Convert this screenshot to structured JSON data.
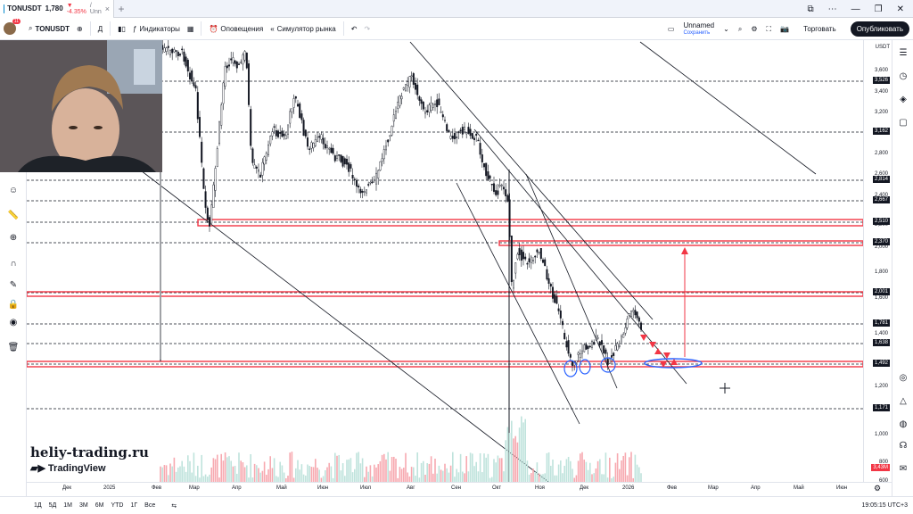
{
  "tab": {
    "symbol": "TONUSDT",
    "price": "1,780",
    "change": "▼ -4.35%",
    "suffix": "/ Unn",
    "close": "×",
    "new": "+"
  },
  "toolbar": {
    "symbol": "TONUSDT",
    "interval": "Д",
    "indicators": "Индикаторы",
    "alerts": "Оповещения",
    "replay": "Симулятор рынка",
    "layout_name": "Unnamed",
    "layout_save": "Сохранить",
    "trade": "Торговать",
    "publish": "Опубликовать",
    "avatar_badge": "11"
  },
  "price_axis": {
    "currency": "USDT",
    "labels": [
      "3,600",
      "3,400",
      "3,200",
      "3,000",
      "2,800",
      "2,600",
      "2,400",
      "2,200",
      "2,000",
      "1,800",
      "1,600",
      "1,400",
      "1,200",
      "1,000",
      "800",
      "600"
    ],
    "tags": [
      {
        "value": "3,526",
        "kind": "dark"
      },
      {
        "value": "3,162",
        "kind": "dark"
      },
      {
        "value": "2,814",
        "kind": "dark"
      },
      {
        "value": "2,667",
        "kind": "dark"
      },
      {
        "value": "2,510",
        "kind": "dark"
      },
      {
        "value": "2,370",
        "kind": "dark"
      },
      {
        "value": "2,001",
        "kind": "dark"
      },
      {
        "value": "1,781",
        "kind": "dark"
      },
      {
        "value": "1,638",
        "kind": "dark"
      },
      {
        "value": "1,492",
        "kind": "dark"
      },
      {
        "value": "1,171",
        "kind": "dark"
      },
      {
        "value": "3,43M",
        "kind": "red"
      }
    ]
  },
  "time_axis": [
    "Дек",
    "2025",
    "Фев",
    "Мар",
    "Апр",
    "Май",
    "Июн",
    "Июл",
    "Авг",
    "Сен",
    "Окт",
    "Ноя",
    "Дек",
    "2026",
    "Фев",
    "Мар",
    "Апр",
    "Май",
    "Июн"
  ],
  "bottom": {
    "ranges": [
      "1Д",
      "5Д",
      "1М",
      "3М",
      "6М",
      "YTD",
      "1Г",
      "Все"
    ],
    "clock": "19:05:15 UTC+3"
  },
  "watermark": {
    "site": "heliy-trading.ru",
    "brand": "TradingView"
  },
  "colors": {
    "up": "#131722",
    "down": "#131722",
    "level": "#f23645",
    "accent": "#2962ff"
  }
}
